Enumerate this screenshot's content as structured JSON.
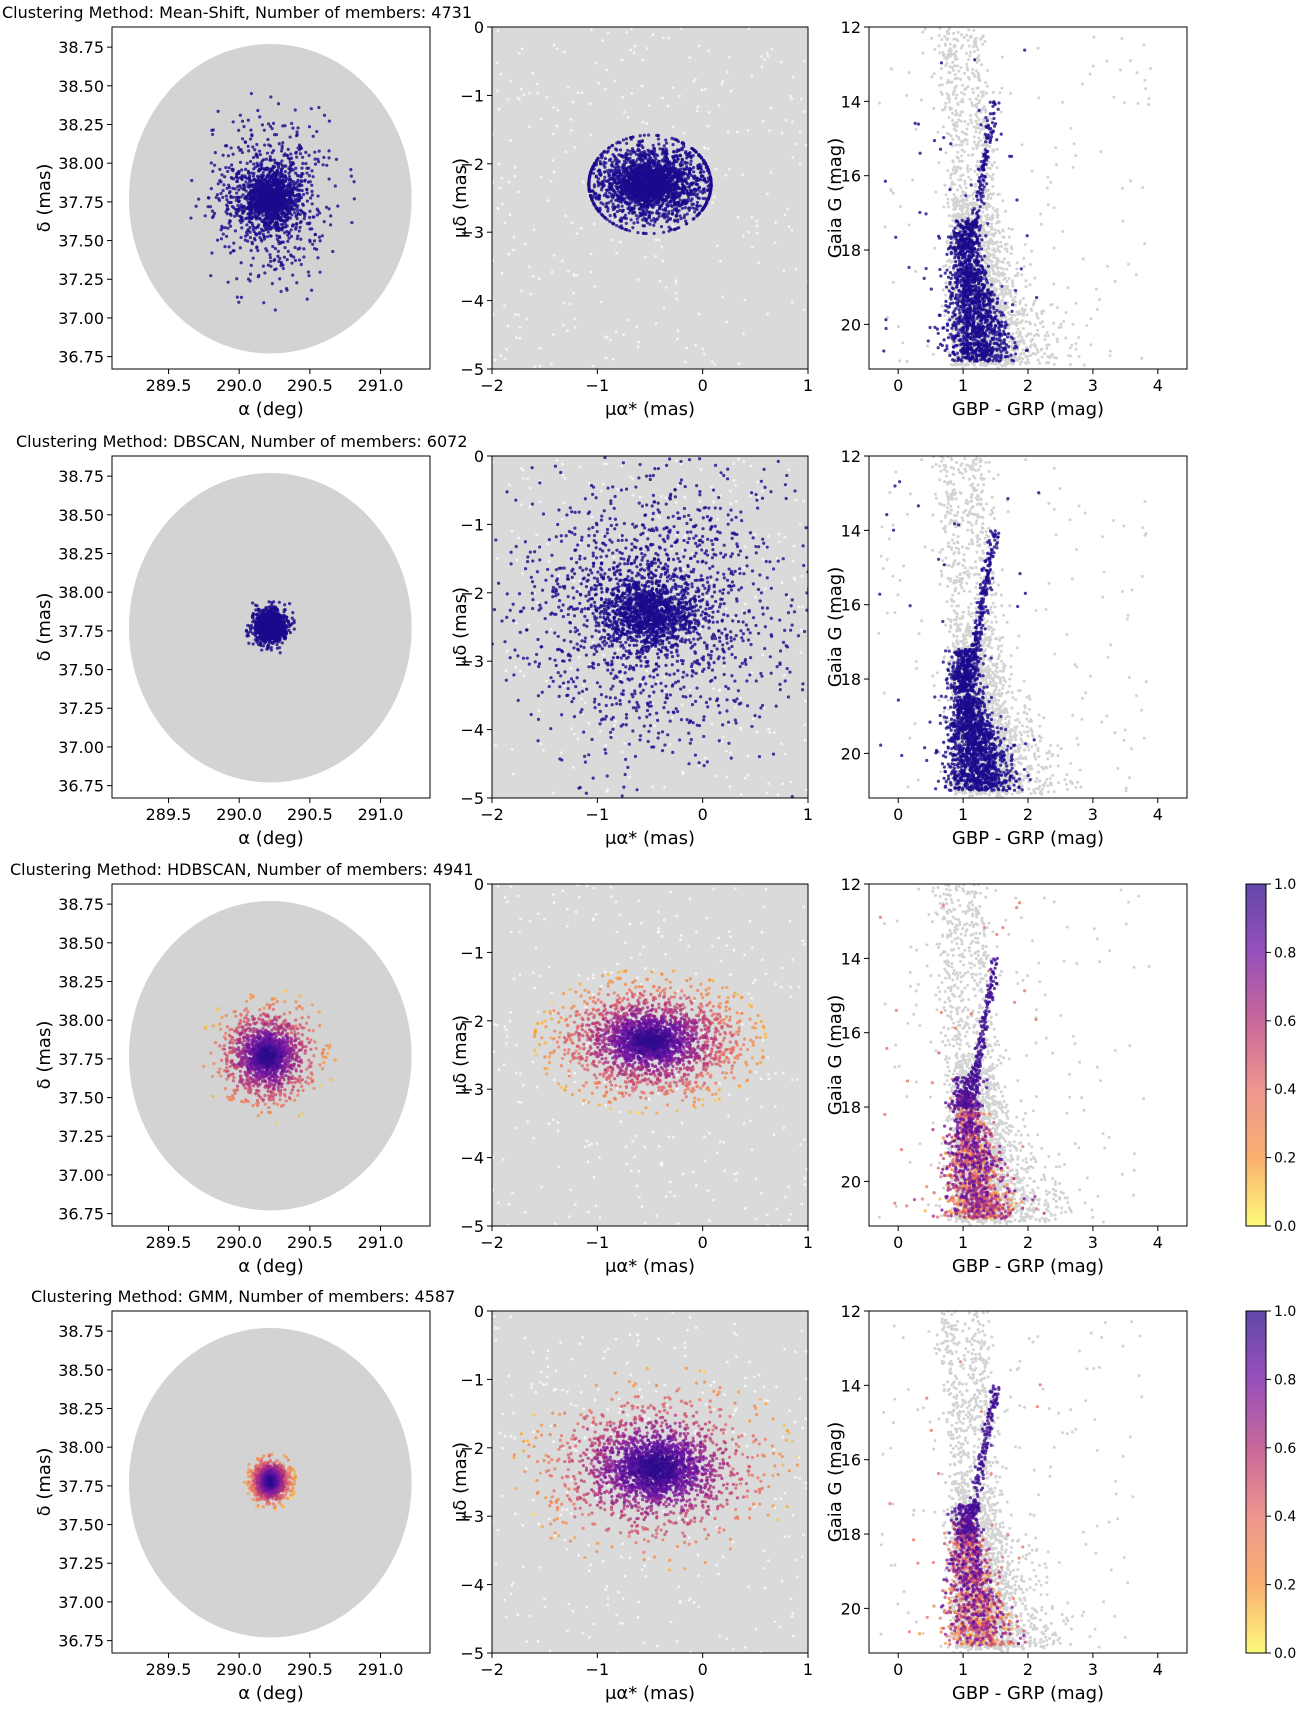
{
  "chart_data": [
    {
      "type": "scatter",
      "title": "Clustering Method: Mean-Shift, Number of members: 4731",
      "colour_mode": "solid",
      "member_color": "#1a0a8c",
      "background_color": "#d3d3d3",
      "panels": [
        {
          "kind": "sky",
          "xlabel": "α (deg)",
          "ylabel": "δ (mas)",
          "xlim": [
            289.1,
            291.35
          ],
          "ylim": [
            36.67,
            38.88
          ],
          "xticks": [
            "289.5",
            "290.0",
            "290.5",
            "291.0"
          ],
          "yticks": [
            "36.75",
            "37.00",
            "37.25",
            "37.50",
            "37.75",
            "38.00",
            "38.25",
            "38.50",
            "38.75"
          ],
          "field_center": [
            290.22,
            37.77
          ],
          "field_radius": [
            1.0,
            1.0
          ],
          "members": {
            "count": 1800,
            "center": [
              290.22,
              37.77
            ],
            "spread": [
              0.2,
              0.24
            ],
            "core_fraction": 0.55,
            "core_spread": [
              0.09,
              0.08
            ],
            "clip": [
              0.6,
              0.72
            ]
          }
        },
        {
          "kind": "pm",
          "xlabel": "μα* (mas)",
          "ylabel": "μδ (mas)",
          "xlim": [
            -2,
            1
          ],
          "ylim": [
            -5,
            0
          ],
          "xticks": [
            "-2",
            "-1",
            "0",
            "1"
          ],
          "yticks": [
            "-5",
            "-4",
            "-3",
            "-2",
            "-1",
            "0"
          ],
          "members": {
            "count": 2400,
            "center": [
              -0.5,
              -2.3
            ],
            "spread": [
              0.35,
              0.3
            ],
            "core_fraction": 0.3,
            "core_spread": [
              0.15,
              0.15
            ],
            "clip": [
              0.58,
              0.72
            ]
          }
        },
        {
          "kind": "cmd",
          "xlabel": "GBP - GRP (mag)",
          "ylabel": "Gaia G (mag)",
          "xlim": [
            -0.45,
            4.45
          ],
          "ylim": [
            21.2,
            12.0
          ],
          "xticks": [
            "0",
            "1",
            "2",
            "3",
            "4"
          ],
          "yticks": [
            "12",
            "14",
            "16",
            "18",
            "20"
          ],
          "members": {
            "count": 1500
          }
        }
      ]
    },
    {
      "type": "scatter",
      "title": "Clustering Method: DBSCAN, Number of members: 6072",
      "colour_mode": "solid",
      "member_color": "#1a0a8c",
      "background_color": "#d3d3d3",
      "panels": [
        {
          "kind": "sky",
          "xlabel": "α (deg)",
          "ylabel": "δ (mas)",
          "xlim": [
            289.1,
            291.35
          ],
          "ylim": [
            36.67,
            38.88
          ],
          "xticks": [
            "289.5",
            "290.0",
            "290.5",
            "291.0"
          ],
          "yticks": [
            "36.75",
            "37.00",
            "37.25",
            "37.50",
            "37.75",
            "38.00",
            "38.25",
            "38.50",
            "38.75"
          ],
          "field_center": [
            290.22,
            37.77
          ],
          "field_radius": [
            1.0,
            1.0
          ],
          "members": {
            "count": 1500,
            "center": [
              290.22,
              37.78
            ],
            "spread": [
              0.06,
              0.055
            ],
            "core_fraction": 0.5,
            "core_spread": [
              0.04,
              0.04
            ],
            "clip": [
              0.17,
              0.25
            ]
          }
        },
        {
          "kind": "pm",
          "xlabel": "μα* (mas)",
          "ylabel": "μδ (mas)",
          "xlim": [
            -2,
            1
          ],
          "ylim": [
            -5,
            0
          ],
          "xticks": [
            "-2",
            "-1",
            "0",
            "1"
          ],
          "yticks": [
            "-5",
            "-4",
            "-3",
            "-2",
            "-1",
            "0"
          ],
          "members": {
            "count": 2600,
            "center": [
              -0.5,
              -2.3
            ],
            "spread": [
              0.65,
              1.0
            ],
            "core_fraction": 0.4,
            "core_spread": [
              0.22,
              0.25
            ],
            "clip": [
              3.0,
              3.0
            ]
          }
        },
        {
          "kind": "cmd",
          "xlabel": "GBP - GRP (mag)",
          "ylabel": "Gaia G (mag)",
          "xlim": [
            -0.45,
            4.45
          ],
          "ylim": [
            21.2,
            12.0
          ],
          "xticks": [
            "0",
            "1",
            "2",
            "3",
            "4"
          ],
          "yticks": [
            "12",
            "14",
            "16",
            "18",
            "20"
          ],
          "members": {
            "count": 1800
          }
        }
      ]
    },
    {
      "type": "scatter",
      "title": "Clustering Method: HDBSCAN, Number of members: 4941",
      "colour_mode": "probability",
      "member_color": "#1a0a8c",
      "background_color": "#d3d3d3",
      "colorbar": {
        "ticks": [
          "0.0",
          "0.2",
          "0.4",
          "0.6",
          "0.8",
          "1.0"
        ],
        "stops": [
          "#fcf94f",
          "#f89540",
          "#e8746a",
          "#b63679",
          "#7316a5",
          "#2e0a8c"
        ]
      },
      "panels": [
        {
          "kind": "sky",
          "xlabel": "α (deg)",
          "ylabel": "δ (mas)",
          "xlim": [
            289.1,
            291.35
          ],
          "ylim": [
            36.67,
            38.88
          ],
          "xticks": [
            "289.5",
            "290.0",
            "290.5",
            "291.0"
          ],
          "yticks": [
            "36.75",
            "37.00",
            "37.25",
            "37.50",
            "37.75",
            "38.00",
            "38.25",
            "38.50",
            "38.75"
          ],
          "field_center": [
            290.22,
            37.77
          ],
          "field_radius": [
            1.0,
            1.0
          ],
          "members": {
            "count": 1700,
            "center": [
              290.2,
              37.77
            ],
            "spread": [
              0.16,
              0.15
            ],
            "core_fraction": 0.35,
            "core_spread": [
              0.06,
              0.06
            ],
            "clip": [
              0.48,
              0.44
            ]
          }
        },
        {
          "kind": "pm",
          "xlabel": "μα* (mas)",
          "ylabel": "μδ (mas)",
          "xlim": [
            -2,
            1
          ],
          "ylim": [
            -5,
            0
          ],
          "xticks": [
            "-2",
            "-1",
            "0",
            "1"
          ],
          "yticks": [
            "-5",
            "-4",
            "-3",
            "-2",
            "-1",
            "0"
          ],
          "members": {
            "count": 2600,
            "center": [
              -0.5,
              -2.3
            ],
            "spread": [
              0.45,
              0.4
            ],
            "core_fraction": 0.3,
            "core_spread": [
              0.15,
              0.15
            ],
            "clip": [
              1.1,
              1.05
            ]
          }
        },
        {
          "kind": "cmd",
          "xlabel": "GBP - GRP (mag)",
          "ylabel": "Gaia G (mag)",
          "xlim": [
            -0.45,
            4.45
          ],
          "ylim": [
            21.2,
            12.0
          ],
          "xticks": [
            "0",
            "1",
            "2",
            "3",
            "4"
          ],
          "yticks": [
            "12",
            "14",
            "16",
            "18",
            "20"
          ],
          "members": {
            "count": 1600
          }
        }
      ]
    },
    {
      "type": "scatter",
      "title": "Clustering Method: GMM, Number of members: 4587",
      "colour_mode": "probability",
      "member_color": "#1a0a8c",
      "background_color": "#d3d3d3",
      "colorbar": {
        "ticks": [
          "0.0",
          "0.2",
          "0.4",
          "0.6",
          "0.8",
          "1.0"
        ],
        "stops": [
          "#fcf94f",
          "#f89540",
          "#e8746a",
          "#b63679",
          "#7316a5",
          "#2e0a8c"
        ]
      },
      "panels": [
        {
          "kind": "sky",
          "xlabel": "α (deg)",
          "ylabel": "δ (mas)",
          "xlim": [
            289.1,
            291.35
          ],
          "ylim": [
            36.67,
            38.88
          ],
          "xticks": [
            "289.5",
            "290.0",
            "290.5",
            "291.0"
          ],
          "yticks": [
            "36.75",
            "37.00",
            "37.25",
            "37.50",
            "37.75",
            "38.00",
            "38.25",
            "38.50",
            "38.75"
          ],
          "field_center": [
            290.22,
            37.77
          ],
          "field_radius": [
            1.0,
            1.0
          ],
          "members": {
            "count": 1500,
            "center": [
              290.22,
              37.78
            ],
            "spread": [
              0.07,
              0.065
            ],
            "core_fraction": 0.5,
            "core_spread": [
              0.04,
              0.04
            ],
            "clip": [
              0.18,
              0.2
            ]
          }
        },
        {
          "kind": "pm",
          "xlabel": "μα* (mas)",
          "ylabel": "μδ (mas)",
          "xlim": [
            -2,
            1
          ],
          "ylim": [
            -5,
            0
          ],
          "xticks": [
            "-2",
            "-1",
            "0",
            "1"
          ],
          "yticks": [
            "-5",
            "-4",
            "-3",
            "-2",
            "-1",
            "0"
          ],
          "members": {
            "count": 2500,
            "center": [
              -0.45,
              -2.3
            ],
            "spread": [
              0.5,
              0.5
            ],
            "core_fraction": 0.45,
            "core_spread": [
              0.2,
              0.2
            ],
            "clip": [
              1.35,
              1.5
            ]
          }
        },
        {
          "kind": "cmd",
          "xlabel": "GBP - GRP (mag)",
          "ylabel": "Gaia G (mag)",
          "xlim": [
            -0.45,
            4.45
          ],
          "ylim": [
            21.2,
            12.0
          ],
          "xticks": [
            "0",
            "1",
            "2",
            "3",
            "4"
          ],
          "yticks": [
            "12",
            "14",
            "16",
            "18",
            "20"
          ],
          "members": {
            "count": 1400
          }
        }
      ]
    }
  ]
}
